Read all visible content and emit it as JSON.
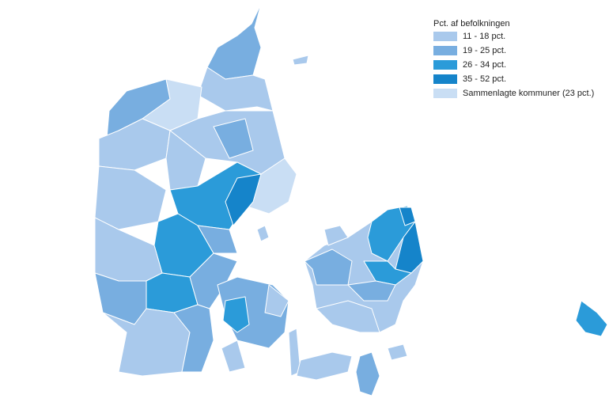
{
  "legend": {
    "title": "Pct. af befolkningen",
    "items": [
      {
        "label": "11 - 18 pct.",
        "color": "#a9c9ec"
      },
      {
        "label": "19 - 25 pct.",
        "color": "#78aee0"
      },
      {
        "label": "26 - 34 pct.",
        "color": "#2b9bd9"
      },
      {
        "label": "35 - 52 pct.",
        "color": "#1584ca"
      },
      {
        "label": "Sammenlagte kommuner (23 pct.)",
        "color": "#c9def4"
      }
    ]
  }
}
